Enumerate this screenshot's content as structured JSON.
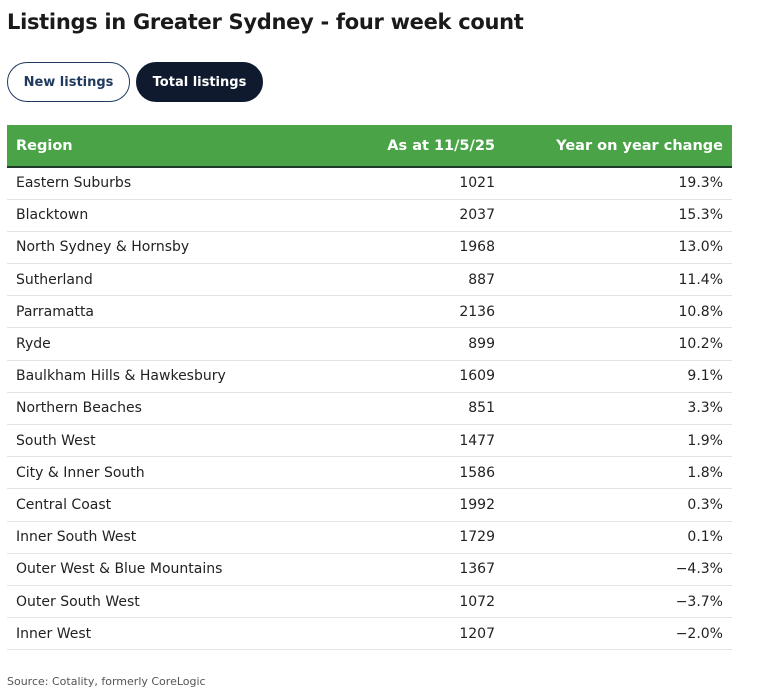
{
  "title": "Listings in Greater Sydney - four week count",
  "tabs": [
    {
      "label": "New listings",
      "active": false
    },
    {
      "label": "Total listings",
      "active": true
    }
  ],
  "colors": {
    "header_bg": "#4aa447",
    "active_tab_bg": "#0f1a2e",
    "tab_outline": "#1f3a5f"
  },
  "chart_data": {
    "type": "table",
    "columns": [
      "Region",
      "As at 11/5/25",
      "Year on year change"
    ],
    "rows": [
      [
        "Eastern Suburbs",
        "1021",
        "19.3%"
      ],
      [
        "Blacktown",
        "2037",
        "15.3%"
      ],
      [
        "North Sydney & Hornsby",
        "1968",
        "13.0%"
      ],
      [
        "Sutherland",
        "887",
        "11.4%"
      ],
      [
        "Parramatta",
        "2136",
        "10.8%"
      ],
      [
        "Ryde",
        "899",
        "10.2%"
      ],
      [
        "Baulkham Hills & Hawkesbury",
        "1609",
        "9.1%"
      ],
      [
        "Northern Beaches",
        "851",
        "3.3%"
      ],
      [
        "South West",
        "1477",
        "1.9%"
      ],
      [
        "City & Inner South",
        "1586",
        "1.8%"
      ],
      [
        "Central Coast",
        "1992",
        "0.3%"
      ],
      [
        "Inner South West",
        "1729",
        "0.1%"
      ],
      [
        "Outer West & Blue Mountains",
        "1367",
        "−4.3%"
      ],
      [
        "Outer South West",
        "1072",
        "−3.7%"
      ],
      [
        "Inner West",
        "1207",
        "−2.0%"
      ]
    ]
  },
  "source": "Source: Cotality, formerly CoreLogic"
}
